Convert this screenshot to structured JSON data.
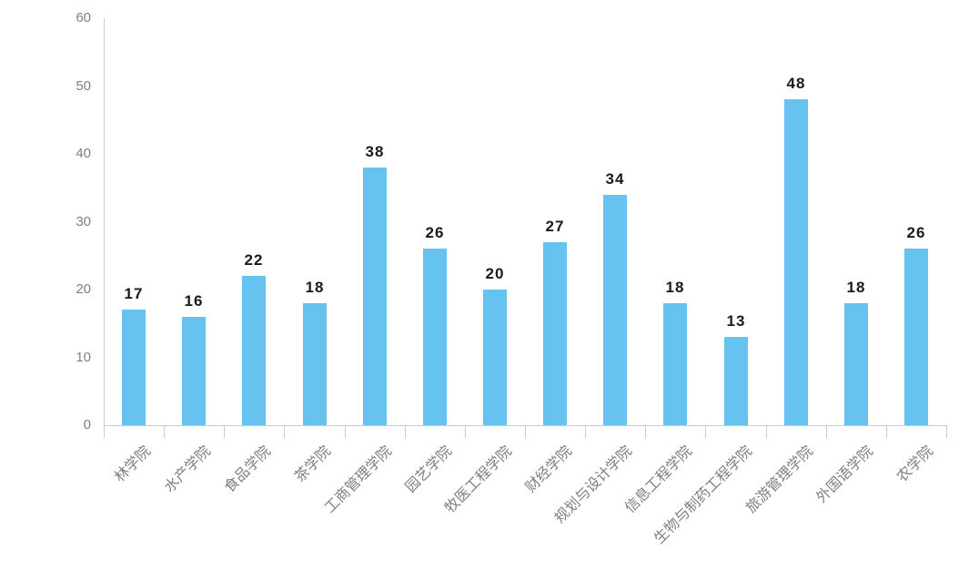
{
  "chart_data": {
    "type": "bar",
    "title": "",
    "xlabel": "",
    "ylabel": "",
    "categories": [
      "林学院",
      "水产学院",
      "食品学院",
      "茶学院",
      "工商管理学院",
      "园艺学院",
      "牧医工程学院",
      "财经学院",
      "规划与设计学院",
      "信息工程学院",
      "生物与制药工程学院",
      "旅游管理学院",
      "外国语学院",
      "农学院"
    ],
    "values": [
      17,
      16,
      22,
      18,
      38,
      26,
      20,
      27,
      34,
      18,
      13,
      48,
      18,
      26
    ],
    "data_labels": [
      "17",
      "16",
      "22",
      "18",
      "38",
      "26",
      "20",
      "27",
      "34",
      "18",
      "13",
      "48",
      "18",
      "26"
    ],
    "ylim": [
      0,
      60
    ],
    "ytick_step": 10,
    "ytick_labels": [
      "0",
      "10",
      "20",
      "30",
      "40",
      "50",
      "60"
    ],
    "grid": false,
    "legend": false,
    "bar_labels_visible": true,
    "x_label_rotation_deg": -45,
    "colors": {
      "bar": "#66C2EF",
      "axis": "#C9CBD4",
      "tick_label": "#7F7F7F",
      "value_label": "#1A1A1A",
      "background": "#FFFFFF"
    }
  }
}
